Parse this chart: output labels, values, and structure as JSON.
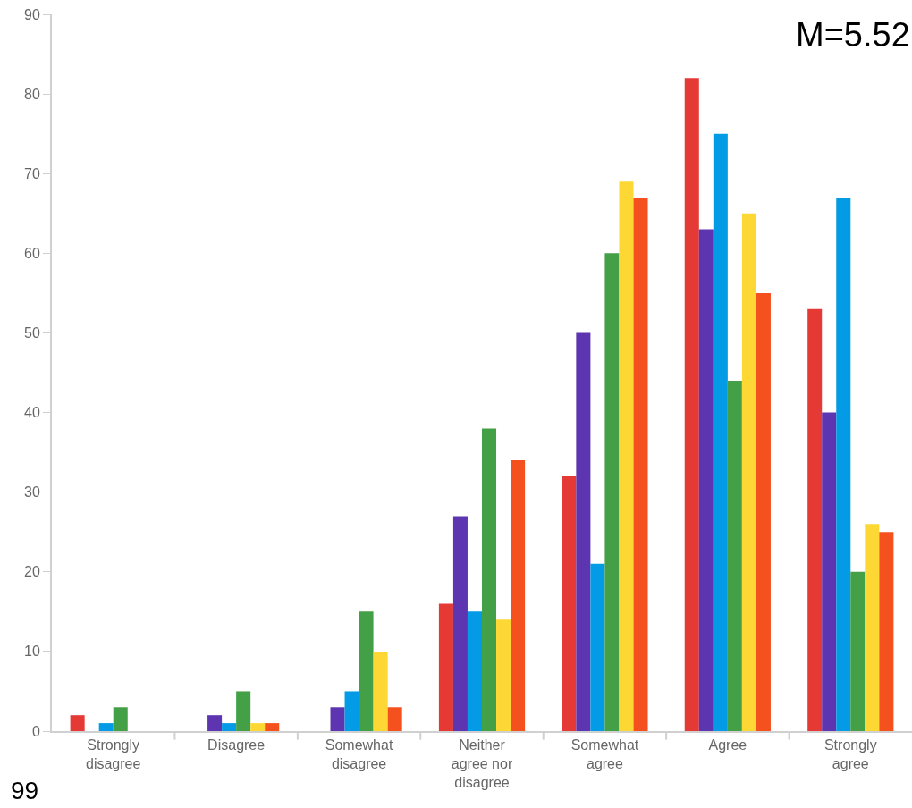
{
  "chart_data": {
    "type": "bar",
    "categories": [
      "Strongly disagree",
      "Disagree",
      "Somewhat disagree",
      "Neither agree nor disagree",
      "Somewhat agree",
      "Agree",
      "Strongly agree"
    ],
    "series": [
      {
        "color": "#e53935",
        "values": [
          2,
          0,
          0,
          16,
          32,
          82,
          53
        ]
      },
      {
        "color": "#5e35b1",
        "values": [
          0,
          2,
          3,
          27,
          50,
          63,
          40
        ]
      },
      {
        "color": "#039be5",
        "values": [
          1,
          1,
          5,
          15,
          21,
          75,
          67
        ]
      },
      {
        "color": "#43a047",
        "values": [
          3,
          5,
          15,
          38,
          60,
          44,
          20
        ]
      },
      {
        "color": "#fdd835",
        "values": [
          0,
          1,
          10,
          14,
          69,
          65,
          26
        ]
      },
      {
        "color": "#f4511e",
        "values": [
          0,
          1,
          3,
          34,
          67,
          55,
          25
        ]
      }
    ],
    "ylim": [
      0,
      90
    ],
    "yticks": [
      0,
      10,
      20,
      30,
      40,
      50,
      60,
      70,
      80,
      90
    ],
    "annotations": [
      "M=5.52",
      "99"
    ]
  }
}
